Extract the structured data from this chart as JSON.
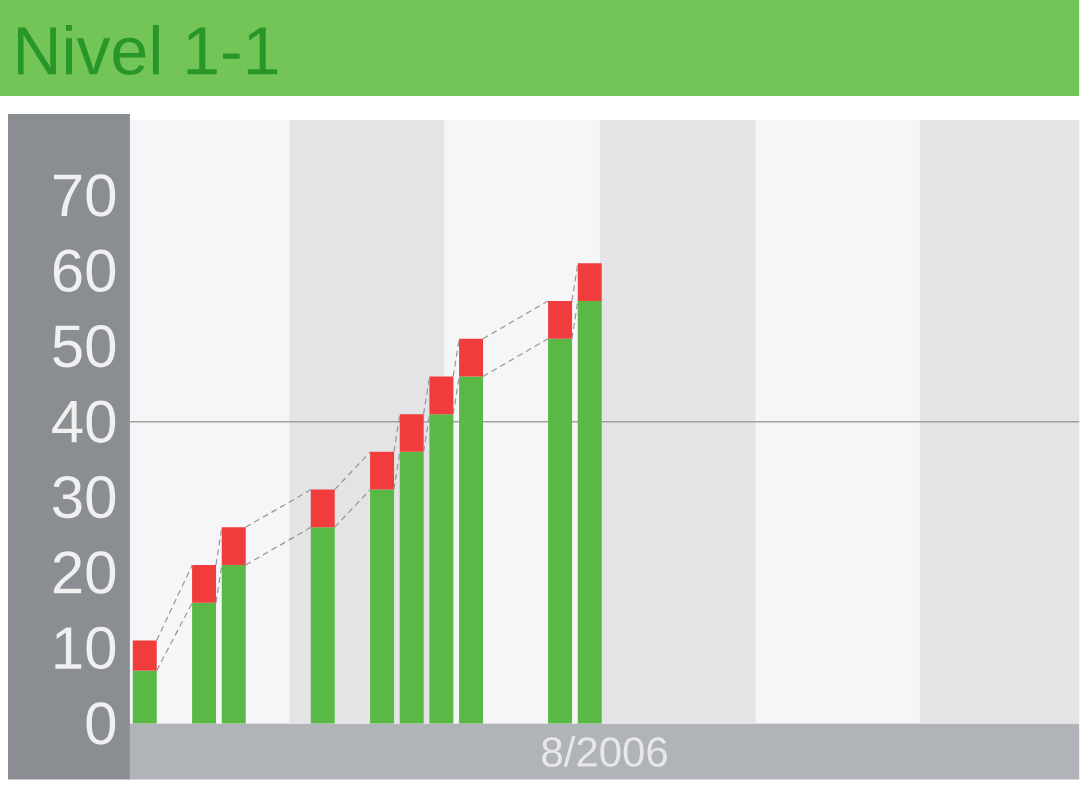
{
  "chart_data": {
    "type": "bar",
    "title": "Nivel 1-1",
    "xlabel": "8/2006",
    "stacked": true,
    "tick_labels": "y",
    "categories": [
      null,
      null,
      null,
      null,
      null,
      null,
      null,
      null,
      null,
      null,
      null,
      null,
      null,
      null,
      null,
      null,
      null,
      null,
      null,
      null,
      null,
      null,
      null,
      null,
      null,
      null,
      null,
      null,
      null,
      null,
      null,
      null
    ],
    "series": [
      {
        "color": "#5ab946",
        "values": [
          7,
          null,
          16,
          21,
          null,
          null,
          26,
          null,
          31,
          36,
          41,
          46,
          null,
          null,
          51,
          56,
          null,
          null,
          null,
          null,
          null,
          null,
          null,
          null,
          null,
          null,
          null,
          null,
          null,
          null,
          null,
          null
        ]
      },
      {
        "color": "#f03c3c",
        "values": [
          4,
          null,
          5,
          5,
          null,
          null,
          5,
          null,
          5,
          5,
          5,
          5,
          null,
          null,
          5,
          5,
          null,
          null,
          null,
          null,
          null,
          null,
          null,
          null,
          null,
          null,
          null,
          null,
          null,
          null,
          null,
          null
        ]
      }
    ],
    "ylim": [
      0,
      80
    ],
    "yticks": [
      0,
      10,
      20,
      30,
      40,
      50,
      60,
      70
    ],
    "ref_lines": [
      {
        "axis": "y",
        "value": 40,
        "color": "#a0a0a0"
      }
    ]
  }
}
